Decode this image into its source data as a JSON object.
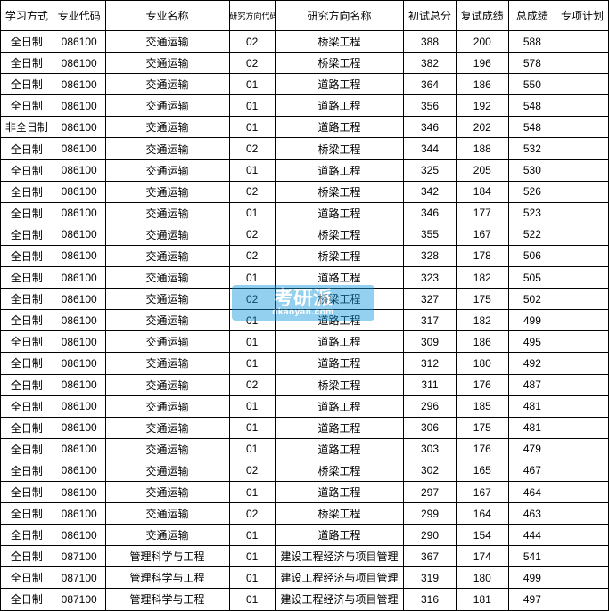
{
  "watermark": {
    "main": "考研派",
    "sub": "okaoyan.com"
  },
  "table": {
    "columns": [
      "学习方式",
      "专业代码",
      "专业名称",
      "研究方向代码",
      "研究方向名称",
      "初试总分",
      "复试成绩",
      "总成绩",
      "专项计划"
    ],
    "rows": [
      [
        "全日制",
        "086100",
        "交通运输",
        "02",
        "桥梁工程",
        "388",
        "200",
        "588",
        ""
      ],
      [
        "全日制",
        "086100",
        "交通运输",
        "02",
        "桥梁工程",
        "382",
        "196",
        "578",
        ""
      ],
      [
        "全日制",
        "086100",
        "交通运输",
        "01",
        "道路工程",
        "364",
        "186",
        "550",
        ""
      ],
      [
        "全日制",
        "086100",
        "交通运输",
        "01",
        "道路工程",
        "356",
        "192",
        "548",
        ""
      ],
      [
        "非全日制",
        "086100",
        "交通运输",
        "01",
        "道路工程",
        "346",
        "202",
        "548",
        ""
      ],
      [
        "全日制",
        "086100",
        "交通运输",
        "02",
        "桥梁工程",
        "344",
        "188",
        "532",
        ""
      ],
      [
        "全日制",
        "086100",
        "交通运输",
        "01",
        "道路工程",
        "325",
        "205",
        "530",
        ""
      ],
      [
        "全日制",
        "086100",
        "交通运输",
        "02",
        "桥梁工程",
        "342",
        "184",
        "526",
        ""
      ],
      [
        "全日制",
        "086100",
        "交通运输",
        "01",
        "道路工程",
        "346",
        "177",
        "523",
        ""
      ],
      [
        "全日制",
        "086100",
        "交通运输",
        "02",
        "桥梁工程",
        "355",
        "167",
        "522",
        ""
      ],
      [
        "全日制",
        "086100",
        "交通运输",
        "02",
        "桥梁工程",
        "328",
        "178",
        "506",
        ""
      ],
      [
        "全日制",
        "086100",
        "交通运输",
        "01",
        "道路工程",
        "323",
        "182",
        "505",
        ""
      ],
      [
        "全日制",
        "086100",
        "交通运输",
        "02",
        "桥梁工程",
        "327",
        "175",
        "502",
        ""
      ],
      [
        "全日制",
        "086100",
        "交通运输",
        "01",
        "道路工程",
        "317",
        "182",
        "499",
        ""
      ],
      [
        "全日制",
        "086100",
        "交通运输",
        "01",
        "道路工程",
        "309",
        "186",
        "495",
        ""
      ],
      [
        "全日制",
        "086100",
        "交通运输",
        "01",
        "道路工程",
        "312",
        "180",
        "492",
        ""
      ],
      [
        "全日制",
        "086100",
        "交通运输",
        "02",
        "桥梁工程",
        "311",
        "176",
        "487",
        ""
      ],
      [
        "全日制",
        "086100",
        "交通运输",
        "01",
        "道路工程",
        "296",
        "185",
        "481",
        ""
      ],
      [
        "全日制",
        "086100",
        "交通运输",
        "01",
        "道路工程",
        "306",
        "175",
        "481",
        ""
      ],
      [
        "全日制",
        "086100",
        "交通运输",
        "01",
        "道路工程",
        "303",
        "176",
        "479",
        ""
      ],
      [
        "全日制",
        "086100",
        "交通运输",
        "02",
        "桥梁工程",
        "302",
        "165",
        "467",
        ""
      ],
      [
        "全日制",
        "086100",
        "交通运输",
        "01",
        "道路工程",
        "297",
        "167",
        "464",
        ""
      ],
      [
        "全日制",
        "086100",
        "交通运输",
        "02",
        "桥梁工程",
        "299",
        "164",
        "463",
        ""
      ],
      [
        "全日制",
        "086100",
        "交通运输",
        "01",
        "道路工程",
        "290",
        "154",
        "444",
        ""
      ],
      [
        "全日制",
        "087100",
        "管理科学与工程",
        "01",
        "建设工程经济与项目管理",
        "367",
        "174",
        "541",
        ""
      ],
      [
        "全日制",
        "087100",
        "管理科学与工程",
        "01",
        "建设工程经济与项目管理",
        "319",
        "180",
        "499",
        ""
      ],
      [
        "全日制",
        "087100",
        "管理科学与工程",
        "01",
        "建设工程经济与项目管理",
        "316",
        "181",
        "497",
        ""
      ]
    ]
  }
}
